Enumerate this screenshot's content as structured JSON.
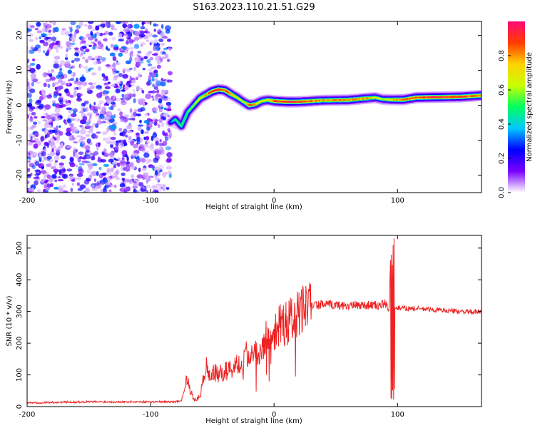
{
  "figure": {
    "title": "S163.2023.110.21.51.G29"
  },
  "colorbar": {
    "label": "Normalized spectral amplitude",
    "range": [
      0,
      1
    ],
    "ticks": [
      0.0,
      0.2,
      0.4,
      0.6,
      0.8
    ],
    "tick_labels": [
      "0.0",
      "0.2",
      "0.4",
      "0.6",
      "0.8"
    ],
    "colors": [
      "#ffffff",
      "#7a00ff",
      "#0000ff",
      "#00c8ff",
      "#00ff60",
      "#c8ff00",
      "#ffd200",
      "#ff3c00",
      "#ff0a78"
    ]
  },
  "chart_data": [
    {
      "type": "heatmap",
      "xlabel": "Height of straight line (km)",
      "ylabel": "Frequency (Hz)",
      "xlim": [
        -200,
        168
      ],
      "ylim": [
        -25,
        24
      ],
      "xticks": [
        -200,
        -100,
        0,
        100
      ],
      "xtick_labels": [
        "-200",
        "-100",
        "0",
        "100"
      ],
      "yticks": [
        -20,
        -10,
        0,
        10,
        20
      ],
      "ytick_labels": [
        "-20",
        "-10",
        "0",
        "10",
        "20"
      ],
      "noise_region_x": [
        -200,
        -84
      ],
      "ridge": {
        "x": [
          -84,
          -80,
          -75,
          -70,
          -65,
          -60,
          -55,
          -50,
          -45,
          -40,
          -35,
          -30,
          -25,
          -20,
          -15,
          -10,
          -5,
          0,
          10,
          20,
          40,
          60,
          75,
          82,
          88,
          95,
          105,
          115,
          130,
          150,
          168
        ],
        "freq_hz": [
          -5,
          -4,
          -6,
          -2,
          0,
          2,
          3,
          4,
          4.5,
          4.3,
          3.2,
          2.2,
          1.0,
          0,
          0.3,
          1.2,
          1.5,
          1.2,
          1.0,
          1.0,
          1.4,
          1.5,
          2.0,
          2.2,
          1.7,
          1.6,
          1.6,
          2.2,
          2.3,
          2.4,
          2.8
        ],
        "amplitude": [
          0.3,
          0.5,
          0.5,
          0.55,
          0.6,
          0.7,
          0.8,
          0.95,
          0.95,
          0.9,
          0.85,
          0.7,
          0.6,
          0.9,
          0.8,
          0.7,
          0.75,
          0.9,
          0.95,
          0.9,
          0.8,
          0.85,
          0.8,
          0.7,
          0.6,
          0.75,
          0.85,
          0.9,
          0.95,
          0.9,
          0.85
        ]
      }
    },
    {
      "type": "line",
      "xlabel": "Height of straight line (km)",
      "ylabel": "SNR (10 * v/v)",
      "xlim": [
        -200,
        168
      ],
      "ylim": [
        0,
        540
      ],
      "xticks": [
        -200,
        -100,
        0,
        100
      ],
      "xtick_labels": [
        "-200",
        "-100",
        "0",
        "100"
      ],
      "yticks": [
        0,
        100,
        200,
        300,
        400,
        500
      ],
      "ytick_labels": [
        "0",
        "100",
        "200",
        "300",
        "400",
        "500"
      ],
      "series": [
        {
          "color": "#ee2222",
          "x": [
            -200,
            -150,
            -100,
            -80,
            -75,
            -72,
            -70,
            -68,
            -65,
            -60,
            -55,
            -52,
            -50,
            -45,
            -40,
            -35,
            -30,
            -25,
            -20,
            -15,
            -10,
            -5,
            0,
            5,
            10,
            20,
            25,
            30,
            40,
            50,
            60,
            70,
            80,
            85,
            90,
            93,
            95,
            96,
            97,
            98,
            100,
            110,
            120,
            130,
            140,
            150,
            160,
            168
          ],
          "values": [
            12,
            15,
            15,
            15,
            20,
            60,
            100,
            55,
            20,
            30,
            130,
            90,
            110,
            100,
            110,
            120,
            130,
            150,
            175,
            165,
            190,
            220,
            245,
            265,
            260,
            290,
            310,
            318,
            322,
            320,
            318,
            320,
            320,
            318,
            325,
            300,
            540,
            30,
            320,
            310,
            310,
            310,
            308,
            305,
            303,
            300,
            298,
            298
          ]
        }
      ]
    }
  ]
}
